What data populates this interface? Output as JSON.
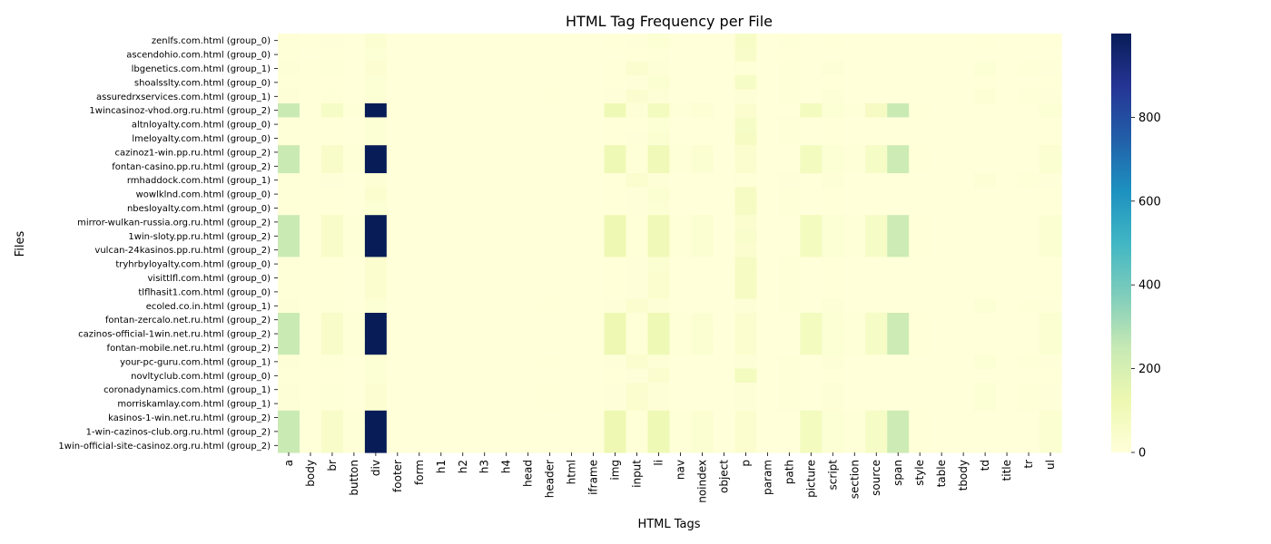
{
  "chart_data": {
    "type": "heatmap",
    "title": "HTML Tag Frequency per File",
    "xlabel": "HTML Tags",
    "ylabel": "Files",
    "colormap": "YlGnBu",
    "vmin": 0,
    "vmax": 1000,
    "colorbar_ticks": [
      "0",
      "200",
      "400",
      "600",
      "800"
    ],
    "colorbar_tick_values": [
      0,
      200,
      400,
      600,
      800
    ],
    "x": [
      "a",
      "body",
      "br",
      "button",
      "div",
      "footer",
      "form",
      "h1",
      "h2",
      "h3",
      "h4",
      "head",
      "header",
      "html",
      "iframe",
      "img",
      "input",
      "li",
      "nav",
      "noindex",
      "object",
      "p",
      "param",
      "path",
      "picture",
      "script",
      "section",
      "source",
      "span",
      "style",
      "table",
      "tbody",
      "td",
      "title",
      "tr",
      "ul"
    ],
    "y": [
      "zenlfs.com.html (group_0)",
      "ascendohio.com.html (group_0)",
      "lbgenetics.com.html (group_1)",
      "shoalsslty.com.html (group_0)",
      "assuredrxservices.com.html (group_1)",
      "1wincasinoz-vhod.org.ru.html (group_2)",
      "altnloyalty.com.html (group_0)",
      "lmeloyalty.com.html (group_0)",
      "cazinoz1-win.pp.ru.html (group_2)",
      "fontan-casino.pp.ru.html (group_2)",
      "rmhaddock.com.html (group_1)",
      "wowlklnd.com.html (group_0)",
      "nbesloyalty.com.html (group_0)",
      "mirror-wulkan-russia.org.ru.html (group_2)",
      "1win-sloty.pp.ru.html (group_2)",
      "vulcan-24kasinos.pp.ru.html (group_2)",
      "tryhrbyloyalty.com.html (group_0)",
      "visittlfl.com.html (group_0)",
      "tlflhasit1.com.html (group_0)",
      "ecoled.co.in.html (group_1)",
      "fontan-zercalo.net.ru.html (group_2)",
      "cazinos-official-1win.net.ru.html (group_2)",
      "fontan-mobile.net.ru.html (group_2)",
      "your-pc-guru.com.html (group_1)",
      "novltyclub.com.html (group_0)",
      "coronadynamics.com.html (group_1)",
      "morriskamlay.com.html (group_1)",
      "kasinos-1-win.net.ru.html (group_2)",
      "1-win-cazinos-club.org.ru.html (group_2)",
      "1win-official-site-casinoz.org.ru.html (group_2)"
    ],
    "values": [
      [
        8,
        2,
        4,
        1,
        25,
        0,
        0,
        0,
        0,
        0,
        0,
        1,
        1,
        1,
        0,
        2,
        4,
        20,
        0,
        0,
        0,
        55,
        1,
        6,
        0,
        2,
        1,
        0,
        0,
        0,
        0,
        0,
        2,
        1,
        1,
        3
      ],
      [
        5,
        1,
        2,
        0,
        18,
        0,
        0,
        0,
        0,
        0,
        0,
        1,
        0,
        1,
        0,
        1,
        2,
        8,
        0,
        0,
        0,
        50,
        0,
        3,
        0,
        1,
        0,
        0,
        0,
        0,
        0,
        0,
        0,
        1,
        0,
        0
      ],
      [
        12,
        2,
        5,
        1,
        22,
        0,
        0,
        0,
        0,
        0,
        0,
        1,
        1,
        1,
        0,
        3,
        30,
        12,
        0,
        0,
        0,
        8,
        1,
        5,
        0,
        10,
        1,
        0,
        0,
        0,
        0,
        0,
        20,
        1,
        6,
        4
      ],
      [
        6,
        2,
        3,
        1,
        20,
        0,
        0,
        0,
        0,
        0,
        0,
        1,
        1,
        1,
        0,
        2,
        4,
        25,
        0,
        0,
        0,
        60,
        0,
        6,
        0,
        2,
        0,
        0,
        0,
        0,
        0,
        0,
        2,
        1,
        1,
        3
      ],
      [
        10,
        2,
        5,
        1,
        18,
        0,
        0,
        0,
        0,
        0,
        0,
        1,
        2,
        1,
        0,
        4,
        30,
        10,
        0,
        0,
        0,
        10,
        0,
        5,
        0,
        14,
        1,
        0,
        0,
        0,
        0,
        0,
        15,
        1,
        5,
        4
      ],
      [
        240,
        2,
        60,
        5,
        999,
        0,
        0,
        0,
        0,
        0,
        0,
        1,
        0,
        1,
        0,
        110,
        10,
        80,
        5,
        15,
        0,
        30,
        0,
        0,
        80,
        20,
        5,
        70,
        240,
        2,
        0,
        0,
        0,
        1,
        0,
        20
      ],
      [
        6,
        2,
        3,
        1,
        18,
        0,
        0,
        0,
        0,
        0,
        0,
        1,
        1,
        1,
        0,
        2,
        3,
        20,
        0,
        0,
        0,
        60,
        0,
        6,
        0,
        2,
        0,
        0,
        0,
        0,
        0,
        0,
        1,
        1,
        1,
        3
      ],
      [
        6,
        2,
        3,
        1,
        18,
        0,
        0,
        0,
        0,
        0,
        0,
        1,
        1,
        1,
        0,
        2,
        4,
        25,
        0,
        0,
        0,
        70,
        0,
        6,
        0,
        2,
        0,
        0,
        0,
        0,
        0,
        0,
        1,
        1,
        1,
        3
      ],
      [
        240,
        2,
        50,
        5,
        999,
        0,
        0,
        0,
        0,
        0,
        0,
        1,
        0,
        1,
        0,
        110,
        8,
        100,
        5,
        25,
        0,
        30,
        0,
        0,
        80,
        20,
        5,
        60,
        230,
        2,
        0,
        0,
        0,
        1,
        0,
        25
      ],
      [
        240,
        2,
        50,
        5,
        999,
        0,
        0,
        0,
        0,
        0,
        0,
        1,
        0,
        1,
        0,
        110,
        8,
        100,
        5,
        25,
        0,
        30,
        0,
        0,
        80,
        20,
        5,
        60,
        230,
        2,
        0,
        0,
        0,
        1,
        0,
        25
      ],
      [
        8,
        2,
        4,
        1,
        16,
        0,
        0,
        0,
        0,
        0,
        0,
        1,
        1,
        1,
        0,
        3,
        30,
        10,
        0,
        0,
        0,
        8,
        0,
        4,
        0,
        10,
        1,
        0,
        0,
        0,
        0,
        0,
        15,
        1,
        5,
        4
      ],
      [
        6,
        2,
        3,
        1,
        30,
        0,
        0,
        0,
        0,
        0,
        0,
        1,
        1,
        1,
        0,
        2,
        4,
        25,
        0,
        0,
        0,
        70,
        0,
        6,
        0,
        2,
        0,
        0,
        0,
        0,
        0,
        0,
        1,
        1,
        1,
        3
      ],
      [
        6,
        2,
        3,
        1,
        18,
        0,
        0,
        0,
        0,
        0,
        0,
        1,
        1,
        1,
        0,
        2,
        4,
        20,
        0,
        0,
        0,
        70,
        0,
        6,
        0,
        2,
        0,
        0,
        0,
        0,
        0,
        0,
        1,
        1,
        1,
        3
      ],
      [
        240,
        2,
        50,
        5,
        999,
        0,
        0,
        0,
        0,
        0,
        0,
        1,
        0,
        1,
        0,
        120,
        8,
        100,
        5,
        25,
        0,
        30,
        0,
        0,
        80,
        20,
        5,
        60,
        230,
        2,
        0,
        0,
        0,
        1,
        0,
        25
      ],
      [
        240,
        2,
        50,
        5,
        999,
        0,
        0,
        0,
        0,
        0,
        0,
        1,
        0,
        1,
        0,
        120,
        8,
        100,
        5,
        25,
        0,
        45,
        0,
        0,
        80,
        20,
        5,
        60,
        230,
        2,
        0,
        0,
        0,
        1,
        0,
        25
      ],
      [
        240,
        2,
        50,
        5,
        999,
        0,
        0,
        0,
        0,
        0,
        0,
        1,
        0,
        1,
        0,
        120,
        8,
        100,
        5,
        25,
        0,
        30,
        0,
        0,
        80,
        20,
        5,
        60,
        230,
        2,
        0,
        0,
        0,
        1,
        0,
        25
      ],
      [
        6,
        2,
        3,
        1,
        30,
        0,
        0,
        0,
        0,
        0,
        0,
        1,
        1,
        1,
        0,
        2,
        4,
        25,
        0,
        0,
        0,
        70,
        0,
        6,
        0,
        2,
        0,
        0,
        0,
        0,
        0,
        0,
        1,
        1,
        1,
        3
      ],
      [
        6,
        2,
        3,
        1,
        30,
        0,
        0,
        0,
        0,
        0,
        0,
        1,
        1,
        1,
        0,
        2,
        4,
        30,
        0,
        0,
        0,
        70,
        0,
        6,
        0,
        2,
        0,
        0,
        0,
        0,
        0,
        0,
        1,
        1,
        1,
        3
      ],
      [
        6,
        2,
        3,
        1,
        30,
        0,
        0,
        0,
        0,
        0,
        0,
        1,
        1,
        1,
        0,
        2,
        4,
        30,
        0,
        0,
        0,
        70,
        0,
        6,
        0,
        2,
        0,
        0,
        0,
        0,
        0,
        0,
        1,
        1,
        1,
        3
      ],
      [
        10,
        2,
        5,
        1,
        20,
        0,
        0,
        0,
        0,
        0,
        0,
        1,
        2,
        1,
        0,
        4,
        30,
        12,
        0,
        0,
        0,
        10,
        0,
        5,
        0,
        14,
        1,
        0,
        0,
        0,
        0,
        0,
        20,
        1,
        8,
        4
      ],
      [
        240,
        2,
        50,
        5,
        999,
        0,
        0,
        0,
        0,
        0,
        0,
        1,
        0,
        1,
        0,
        120,
        8,
        110,
        5,
        25,
        0,
        30,
        0,
        0,
        80,
        20,
        5,
        60,
        230,
        2,
        0,
        0,
        0,
        1,
        0,
        25
      ],
      [
        240,
        2,
        50,
        5,
        999,
        0,
        0,
        0,
        0,
        0,
        0,
        1,
        0,
        1,
        0,
        120,
        8,
        110,
        5,
        25,
        0,
        30,
        0,
        0,
        80,
        20,
        5,
        60,
        230,
        2,
        0,
        0,
        0,
        1,
        0,
        25
      ],
      [
        240,
        2,
        50,
        5,
        999,
        0,
        0,
        0,
        0,
        0,
        0,
        1,
        0,
        1,
        0,
        120,
        8,
        110,
        5,
        25,
        0,
        30,
        0,
        0,
        80,
        20,
        5,
        60,
        230,
        2,
        0,
        0,
        0,
        1,
        0,
        25
      ],
      [
        10,
        2,
        5,
        1,
        20,
        0,
        0,
        0,
        0,
        0,
        0,
        1,
        2,
        1,
        0,
        4,
        30,
        12,
        0,
        0,
        0,
        10,
        0,
        5,
        0,
        14,
        1,
        0,
        0,
        0,
        0,
        0,
        20,
        1,
        8,
        4
      ],
      [
        6,
        2,
        3,
        1,
        20,
        0,
        0,
        0,
        0,
        0,
        0,
        1,
        1,
        1,
        0,
        2,
        4,
        30,
        0,
        0,
        0,
        80,
        0,
        6,
        0,
        2,
        0,
        0,
        0,
        0,
        0,
        0,
        1,
        1,
        1,
        3
      ],
      [
        10,
        2,
        5,
        1,
        22,
        0,
        0,
        0,
        0,
        0,
        0,
        1,
        2,
        1,
        0,
        4,
        30,
        12,
        0,
        0,
        0,
        10,
        0,
        5,
        0,
        14,
        1,
        0,
        0,
        0,
        0,
        0,
        20,
        1,
        8,
        4
      ],
      [
        12,
        2,
        5,
        1,
        22,
        0,
        0,
        0,
        0,
        0,
        0,
        1,
        2,
        1,
        0,
        4,
        30,
        12,
        0,
        0,
        0,
        10,
        0,
        5,
        0,
        14,
        1,
        0,
        0,
        0,
        0,
        0,
        20,
        1,
        8,
        4
      ],
      [
        240,
        2,
        50,
        5,
        999,
        0,
        0,
        0,
        0,
        0,
        0,
        1,
        0,
        1,
        0,
        120,
        8,
        110,
        5,
        25,
        0,
        30,
        0,
        0,
        80,
        20,
        5,
        60,
        230,
        2,
        0,
        0,
        0,
        1,
        0,
        25
      ],
      [
        240,
        2,
        50,
        5,
        999,
        0,
        0,
        0,
        0,
        0,
        0,
        1,
        0,
        1,
        0,
        120,
        8,
        110,
        5,
        25,
        0,
        30,
        0,
        0,
        80,
        20,
        5,
        60,
        230,
        2,
        0,
        0,
        0,
        1,
        0,
        25
      ],
      [
        240,
        2,
        50,
        5,
        999,
        0,
        0,
        0,
        0,
        0,
        0,
        1,
        0,
        1,
        0,
        120,
        8,
        110,
        5,
        25,
        0,
        30,
        0,
        0,
        80,
        20,
        5,
        60,
        230,
        2,
        0,
        0,
        0,
        1,
        0,
        25
      ]
    ]
  }
}
